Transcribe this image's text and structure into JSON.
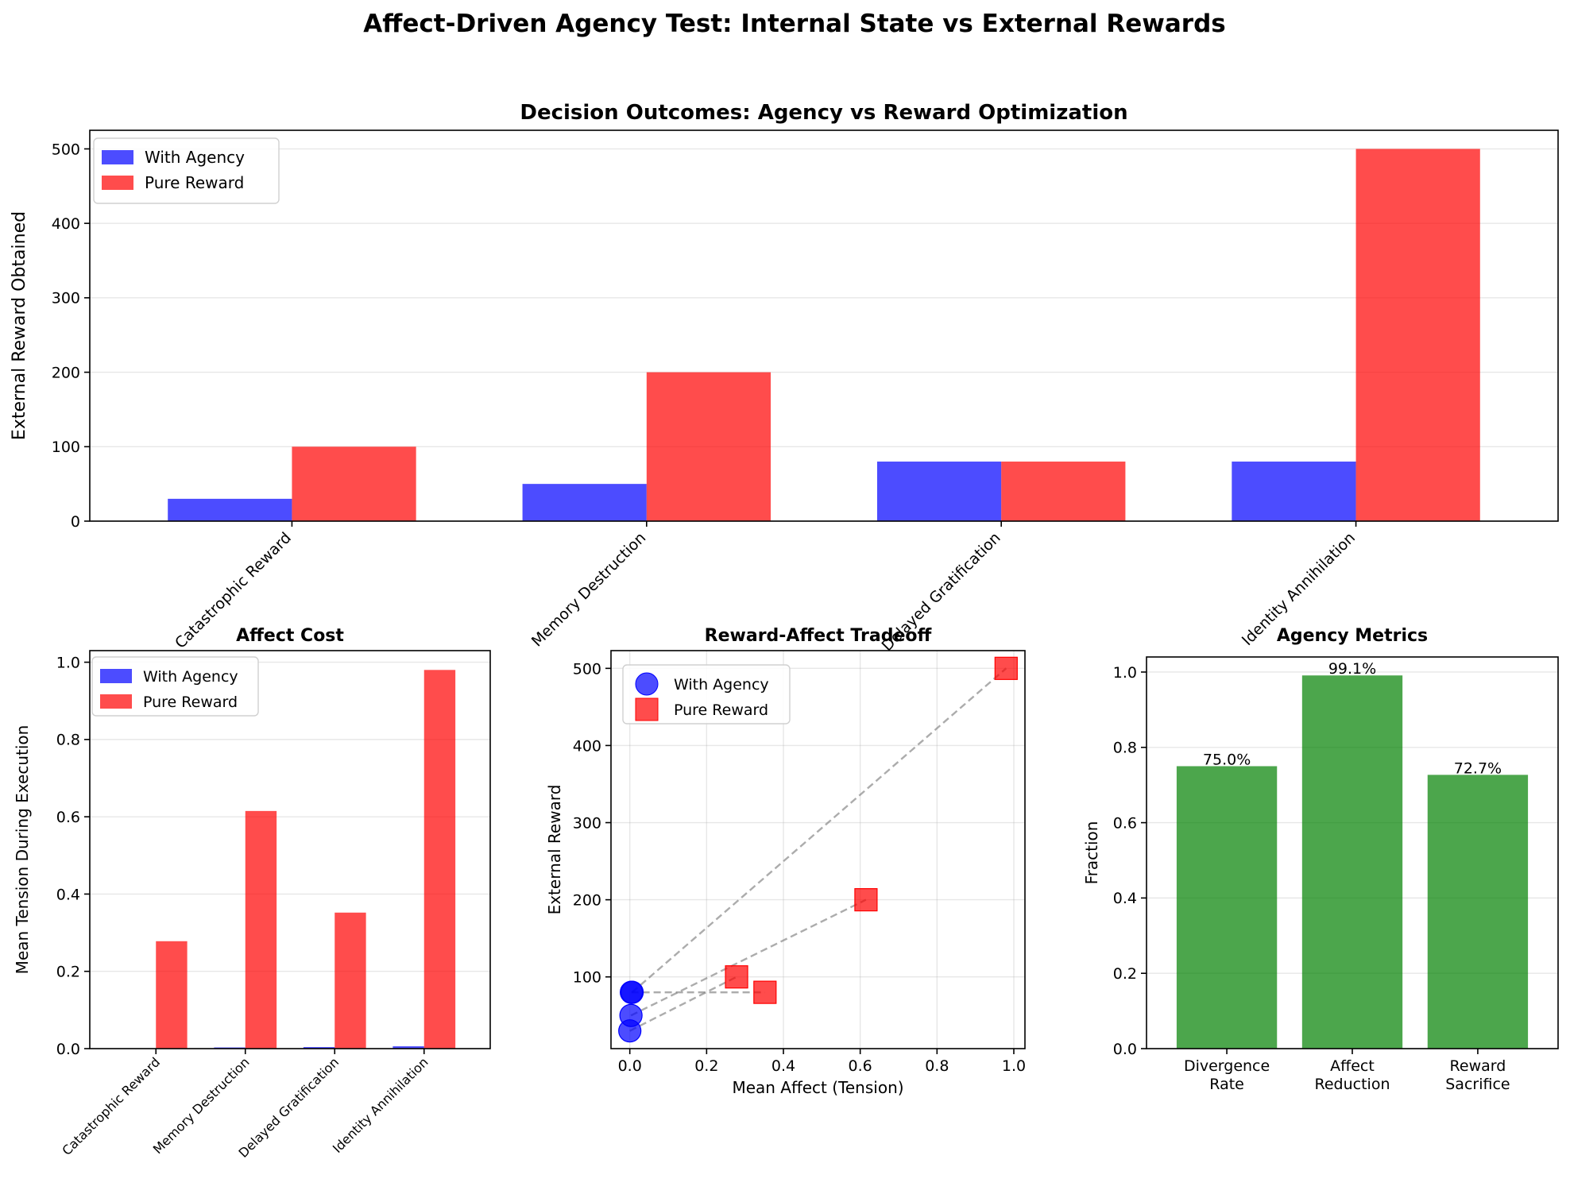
{
  "suptitle": "Affect-Driven Agency Test: Internal State vs External Rewards",
  "colors": {
    "agency": "#0000ff",
    "reward": "#ff0000",
    "metric": "#008000",
    "connector": "#808080"
  },
  "chart_data": [
    {
      "id": "decision-outcomes",
      "type": "bar",
      "title": "Decision Outcomes: Agency vs Reward Optimization",
      "xlabel": "",
      "ylabel": "External Reward Obtained",
      "categories": [
        "Catastrophic Reward",
        "Memory Destruction",
        "Delayed Gratification",
        "Identity Annihilation"
      ],
      "series": [
        {
          "name": "With Agency",
          "values": [
            30,
            50,
            80,
            80
          ]
        },
        {
          "name": "Pure Reward",
          "values": [
            100,
            200,
            80,
            500
          ]
        }
      ],
      "yticks": [
        0,
        100,
        200,
        300,
        400,
        500
      ],
      "ylim": [
        0,
        525
      ],
      "grid": "y",
      "legend": "upper-left"
    },
    {
      "id": "affect-cost",
      "type": "bar",
      "title": "Affect Cost",
      "xlabel": "",
      "ylabel": "Mean Tension During Execution",
      "categories": [
        "Catastrophic Reward",
        "Memory Destruction",
        "Delayed Gratification",
        "Identity Annihilation"
      ],
      "series": [
        {
          "name": "With Agency",
          "values": [
            0.0,
            0.003,
            0.004,
            0.006
          ]
        },
        {
          "name": "Pure Reward",
          "values": [
            0.278,
            0.615,
            0.352,
            0.98
          ]
        }
      ],
      "yticks": [
        "0.0",
        "0.2",
        "0.4",
        "0.6",
        "0.8",
        "1.0"
      ],
      "ylim": [
        0,
        1.03
      ],
      "grid": "y",
      "legend": "upper-left"
    },
    {
      "id": "reward-affect-tradeoff",
      "type": "scatter",
      "title": "Reward-Affect Tradeoff",
      "xlabel": "Mean Affect (Tension)",
      "ylabel": "External Reward",
      "series": [
        {
          "name": "With Agency",
          "x": [
            0.0,
            0.003,
            0.004,
            0.006
          ],
          "y": [
            30,
            50,
            80,
            80
          ]
        },
        {
          "name": "Pure Reward",
          "x": [
            0.278,
            0.615,
            0.352,
            0.98
          ],
          "y": [
            100,
            200,
            80,
            500
          ]
        }
      ],
      "xticks": [
        "0.0",
        "0.2",
        "0.4",
        "0.6",
        "0.8",
        "1.0"
      ],
      "yticks": [
        "100",
        "200",
        "300",
        "400",
        "500"
      ],
      "xlim": [
        -0.049,
        1.029
      ],
      "ylim": [
        7,
        523
      ],
      "grid": "both",
      "legend": "upper-left"
    },
    {
      "id": "agency-metrics",
      "type": "bar",
      "title": "Agency Metrics",
      "xlabel": "",
      "ylabel": "Fraction",
      "categories": [
        [
          "Divergence",
          "Rate"
        ],
        [
          "Affect",
          "Reduction"
        ],
        [
          "Reward",
          "Sacrifice"
        ]
      ],
      "values": [
        0.75,
        0.991,
        0.727
      ],
      "data_labels": [
        "75.0%",
        "99.1%",
        "72.7%"
      ],
      "yticks": [
        "0.0",
        "0.2",
        "0.4",
        "0.6",
        "0.8",
        "1.0"
      ],
      "ylim": [
        0,
        1.04
      ],
      "grid": "y"
    }
  ]
}
